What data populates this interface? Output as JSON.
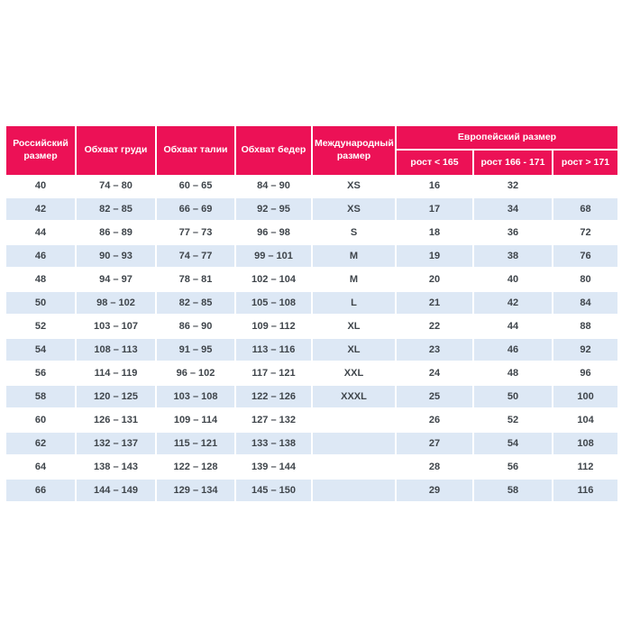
{
  "colors": {
    "header_bg": "#ec1156",
    "header_text": "#ffffff",
    "row_bg": "#ffffff",
    "row_alt_bg": "#dde8f5",
    "text": "#3f454b"
  },
  "chart_data": {
    "type": "table",
    "headers": {
      "russian_size": "Российский размер",
      "chest": "Обхват груди",
      "waist": "Обхват талии",
      "hips": "Обхват бедер",
      "international": "Международный размер",
      "european_group": "Европейский размер",
      "european_sub": [
        "рост < 165",
        "рост 166 - 171",
        "рост > 171"
      ]
    },
    "rows": [
      [
        "40",
        "74 – 80",
        "60 – 65",
        "84 – 90",
        "XS",
        "16",
        "32",
        ""
      ],
      [
        "42",
        "82 – 85",
        "66 – 69",
        "92 – 95",
        "XS",
        "17",
        "34",
        "68"
      ],
      [
        "44",
        "86 – 89",
        "77 – 73",
        "96 – 98",
        "S",
        "18",
        "36",
        "72"
      ],
      [
        "46",
        "90 – 93",
        "74 – 77",
        "99 – 101",
        "M",
        "19",
        "38",
        "76"
      ],
      [
        "48",
        "94 – 97",
        "78 – 81",
        "102 – 104",
        "M",
        "20",
        "40",
        "80"
      ],
      [
        "50",
        "98 – 102",
        "82 – 85",
        "105 – 108",
        "L",
        "21",
        "42",
        "84"
      ],
      [
        "52",
        "103 – 107",
        "86 – 90",
        "109 – 112",
        "XL",
        "22",
        "44",
        "88"
      ],
      [
        "54",
        "108 – 113",
        "91 – 95",
        "113 – 116",
        "XL",
        "23",
        "46",
        "92"
      ],
      [
        "56",
        "114 – 119",
        "96 – 102",
        "117 – 121",
        "XXL",
        "24",
        "48",
        "96"
      ],
      [
        "58",
        "120 – 125",
        "103 – 108",
        "122 – 126",
        "XXXL",
        "25",
        "50",
        "100"
      ],
      [
        "60",
        "126 – 131",
        "109 – 114",
        "127 – 132",
        "",
        "26",
        "52",
        "104"
      ],
      [
        "62",
        "132 – 137",
        "115 – 121",
        "133 – 138",
        "",
        "27",
        "54",
        "108"
      ],
      [
        "64",
        "138 – 143",
        "122 – 128",
        "139 – 144",
        "",
        "28",
        "56",
        "112"
      ],
      [
        "66",
        "144 – 149",
        "129 – 134",
        "145 – 150",
        "",
        "29",
        "58",
        "116"
      ]
    ]
  }
}
